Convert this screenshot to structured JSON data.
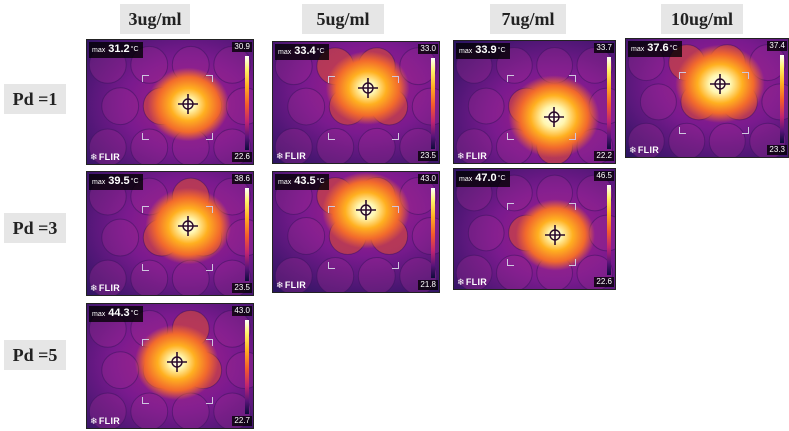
{
  "columns": [
    "3ug/ml",
    "5ug/ml",
    "7ug/ml",
    "10ug/ml"
  ],
  "rows": [
    "Pd =1",
    "Pd =3",
    "Pd =5"
  ],
  "tile_labels": {
    "max": "max",
    "unit": "°C",
    "brand": "FLIR",
    "brand_icon": "snowflake-icon"
  },
  "tiles": [
    {
      "row": "Pd =1",
      "column": "3ug/ml",
      "max": "31.2",
      "scale_top": "30.9",
      "scale_bottom": "22.6",
      "hotspot_level": 0.55
    },
    {
      "row": "Pd =1",
      "column": "5ug/ml",
      "max": "33.4",
      "scale_top": "33.0",
      "scale_bottom": "23.5",
      "hotspot_level": 0.6
    },
    {
      "row": "Pd =1",
      "column": "7ug/ml",
      "max": "33.9",
      "scale_top": "33.7",
      "scale_bottom": "22.2",
      "hotspot_level": 0.85
    },
    {
      "row": "Pd =1",
      "column": "10ug/ml",
      "max": "37.6",
      "scale_top": "37.4",
      "scale_bottom": "23.3",
      "hotspot_level": 0.8
    },
    {
      "row": "Pd =3",
      "column": "3ug/ml",
      "max": "39.5",
      "scale_top": "38.6",
      "scale_bottom": "23.5",
      "hotspot_level": 0.65
    },
    {
      "row": "Pd =3",
      "column": "5ug/ml",
      "max": "43.5",
      "scale_top": "43.0",
      "scale_bottom": "21.8",
      "hotspot_level": 0.7
    },
    {
      "row": "Pd =3",
      "column": "7ug/ml",
      "max": "47.0",
      "scale_top": "46.5",
      "scale_bottom": "22.6",
      "hotspot_level": 0.55
    },
    {
      "row": "Pd =5",
      "column": "3ug/ml",
      "max": "44.3",
      "scale_top": "43.0",
      "scale_bottom": "22.7",
      "hotspot_level": 0.6
    }
  ],
  "colors": {
    "header_bg": "#e6e6e6",
    "cold": "#2a1460",
    "mid": "#a8208a",
    "warm": "#f26a2c",
    "hot": "#fff6b0"
  }
}
